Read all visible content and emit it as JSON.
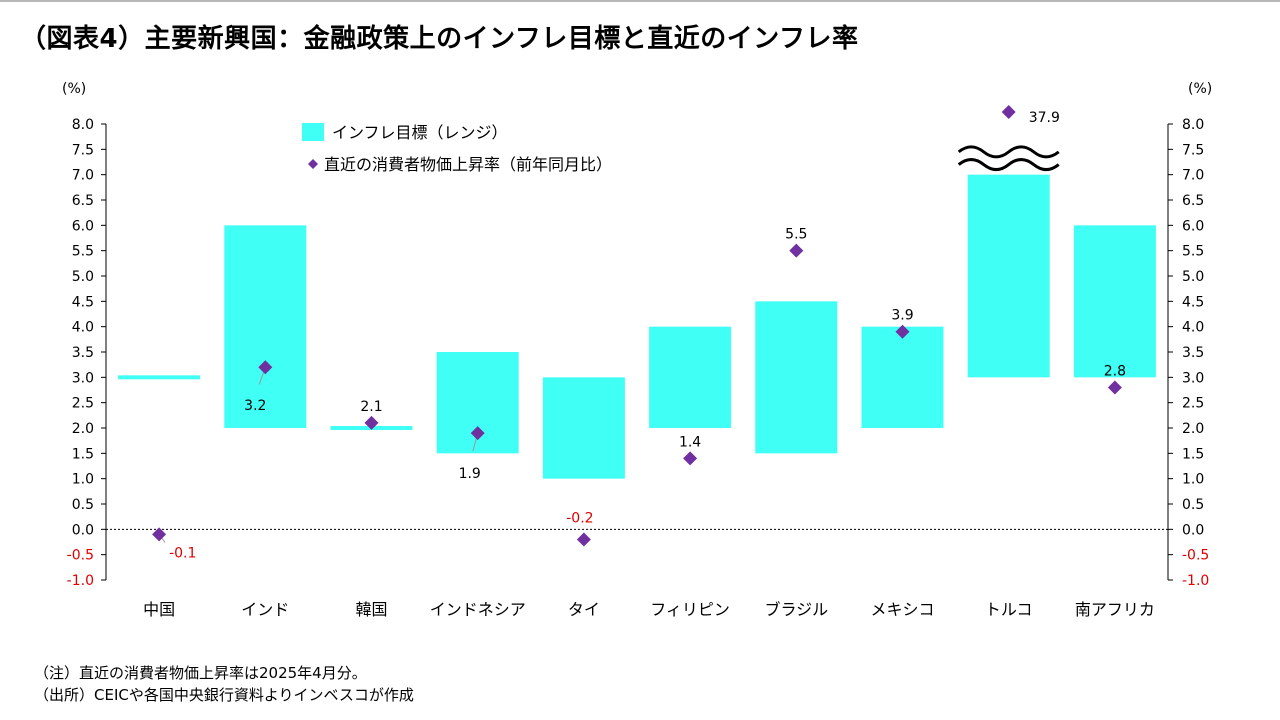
{
  "title": "（図表4）主要新興国：金融政策上のインフレ目標と直近のインフレ率",
  "notes": {
    "note": "（注）直近の消費者物価上昇率は2025年4月分。",
    "source": "（出所）CEICや各国中央銀行資料よりインベスコが作成"
  },
  "colors": {
    "target": "#40FFF4",
    "actual": "#7030A0",
    "negative_label": "#E00000",
    "axis": "#000000"
  },
  "chart_data": {
    "type": "bar",
    "title": "主要新興国：金融政策上のインフレ目標と直近のインフレ率",
    "unit_left": "(%)",
    "unit_right": "(%)",
    "ylim": [
      -1.0,
      8.0
    ],
    "ytick_step": 0.5,
    "yticks": [
      "8.0",
      "7.5",
      "7.0",
      "6.5",
      "6.0",
      "5.5",
      "5.0",
      "4.5",
      "4.0",
      "3.5",
      "3.0",
      "2.5",
      "2.0",
      "1.5",
      "1.0",
      "0.5",
      "0.0",
      "-0.5",
      "-1.0"
    ],
    "categories": [
      "中国",
      "インド",
      "韓国",
      "インドネシア",
      "タイ",
      "フィリピン",
      "ブラジル",
      "メキシコ",
      "トルコ",
      "南アフリカ"
    ],
    "legend": [
      "インフレ目標（レンジ）",
      "直近の消費者物価上昇率（前年同月比）"
    ],
    "series": [
      {
        "name": "インフレ目標（レンジ）",
        "kind": "range_bar",
        "low": [
          3.0,
          2.0,
          2.0,
          1.5,
          1.0,
          2.0,
          1.5,
          2.0,
          3.0,
          3.0
        ],
        "high": [
          3.0,
          6.0,
          2.0,
          3.5,
          3.0,
          4.0,
          4.5,
          4.0,
          7.0,
          6.0
        ]
      },
      {
        "name": "直近の消費者物価上昇率（前年同月比）",
        "kind": "marker",
        "values": [
          -0.1,
          3.2,
          2.1,
          1.9,
          -0.2,
          1.4,
          5.5,
          3.9,
          37.9,
          2.8
        ],
        "labels": [
          "-0.1",
          "3.2",
          "2.1",
          "1.9",
          "-0.2",
          "1.4",
          "5.5",
          "3.9",
          "37.9",
          "2.8"
        ]
      }
    ],
    "axis_break": {
      "category": "トルコ",
      "note": "value exceeds axis range"
    }
  }
}
